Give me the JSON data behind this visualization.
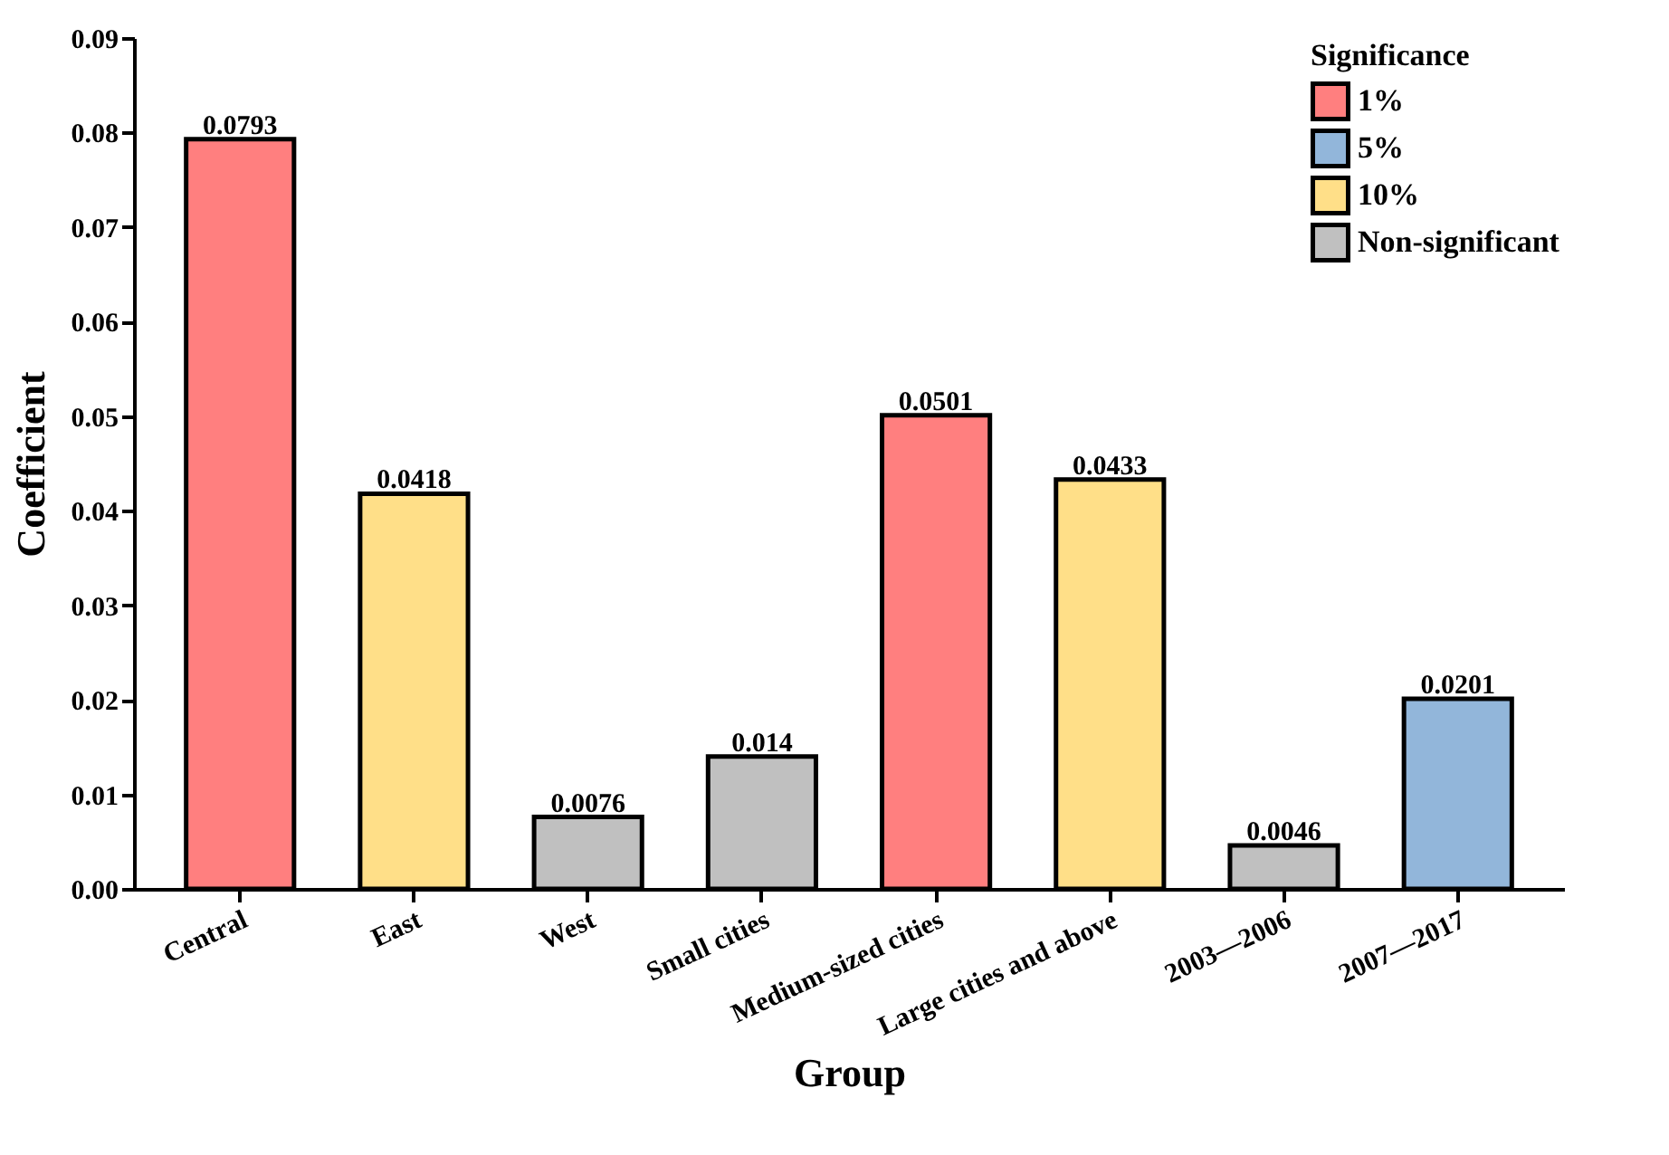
{
  "chart_data": {
    "type": "bar",
    "xlabel": "Group",
    "ylabel": "Coefficient",
    "legend_title": "Significance",
    "legend": "top right",
    "data_labels": true,
    "categories": [
      "Central",
      "East",
      "West",
      "Small cities",
      "Medium-sized cities",
      "Large cities and above",
      "2003—2006",
      "2007—2017"
    ],
    "series": [
      {
        "name": "1%",
        "color": "#ff7f7f",
        "values": [
          0.0793,
          null,
          null,
          null,
          0.0501,
          null,
          null,
          null
        ]
      },
      {
        "name": "5%",
        "color": "#92b6da",
        "values": [
          null,
          null,
          null,
          null,
          null,
          null,
          null,
          0.0201
        ]
      },
      {
        "name": "10%",
        "color": "#ffdf88",
        "values": [
          null,
          0.0418,
          null,
          null,
          null,
          0.0433,
          null,
          null
        ]
      },
      {
        "name": "Non-significant",
        "color": "#c0c0c0",
        "values": [
          null,
          null,
          0.0076,
          0.014,
          null,
          null,
          0.0046,
          null
        ]
      }
    ],
    "ylim": [
      0,
      0.09
    ],
    "yticks": [
      {
        "value": 0,
        "label": "0.00"
      },
      0.01,
      0.02,
      0.03,
      0.04,
      0.05,
      0.06,
      0.07,
      0.08,
      0.09
    ]
  }
}
